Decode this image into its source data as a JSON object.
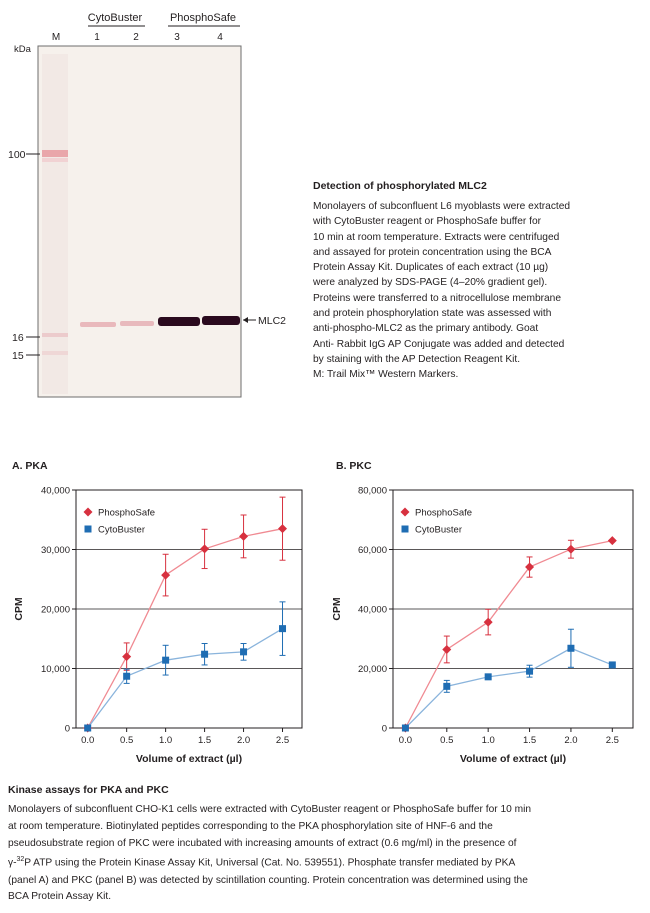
{
  "blot": {
    "groups": [
      {
        "label": "CytoBuster",
        "lanes": [
          "1",
          "2"
        ]
      },
      {
        "label": "PhosphoSafe",
        "lanes": [
          "3",
          "4"
        ]
      }
    ],
    "marker_lane_label": "M",
    "kda_label": "kDa",
    "markers": [
      "100",
      "16",
      "15"
    ],
    "band_label": "MLC2"
  },
  "blot_caption": {
    "title": "Detection of phosphorylated MLC2",
    "lines": [
      "Monolayers of subconfluent L6 myoblasts were extracted",
      "with CytoBuster reagent or PhosphoSafe buffer for",
      "10 min at room temperature. Extracts were centrifuged",
      "and assayed for protein concentration using the BCA",
      "Protein Assay Kit. Duplicates of each extract (10 µg)",
      "were analyzed by SDS-PAGE (4–20% gradient gel).",
      "Proteins were transferred to a nitrocellulose membrane",
      "and protein phosphorylation state was assessed with",
      "anti-phospho-MLC2 as the primary antibody. Goat",
      "Anti- Rabbit IgG AP Conjugate was added and detected",
      "by staining with the AP Detection Reagent Kit.",
      "M: Trail Mix™ Western Markers."
    ]
  },
  "kinase_caption": {
    "title": "Kinase assays for PKA and PKC",
    "line1": "Monolayers of subconfluent CHO-K1 cells were extracted with CytoBuster reagent or PhosphoSafe buffer for 10 min",
    "line2": "at room temperature. Biotinylated peptides corresponding to the PKA phosphorylation site of HNF-6 and the",
    "line3": "pseudosubstrate region of PKC were incubated with increasing amounts of extract (0.6 mg/ml) in the presence of",
    "line4_pre": "γ-",
    "line4_sup": "32",
    "line4_post": "P ATP using the Protein Kinase Assay Kit, Universal (Cat. No. 539551). Phosphate transfer mediated by PKA",
    "line5": "(panel A) and PKC (panel B) was detected by scintillation counting. Protein concentration was determined using the",
    "line6": "BCA Protein Assay Kit."
  },
  "colors": {
    "phosphosafe": "#d7313f",
    "cytobuster": "#1f6db3",
    "line_phosphosafe": "#f08a92",
    "line_cytobuster": "#8ab4dc",
    "band": "#2a0a1e",
    "marker_pink": "#e79aa0"
  },
  "chart_data": [
    {
      "type": "line",
      "title": "A. PKA",
      "xlabel": "Volume of extract (µl)",
      "ylabel": "CPM",
      "xlim": [
        -0.15,
        2.75
      ],
      "ylim": [
        0,
        40000
      ],
      "x_ticks": [
        "0.0",
        "0.5",
        "1.0",
        "1.5",
        "2.0",
        "2.5"
      ],
      "y_ticks": [
        "0",
        "10,000",
        "20,000",
        "30,000",
        "40,000"
      ],
      "grid": "horizontal",
      "legend": "top-left",
      "series": [
        {
          "name": "PhosphoSafe",
          "marker": "diamond",
          "x": [
            0,
            0.5,
            1.0,
            1.5,
            2.0,
            2.5
          ],
          "y": [
            0,
            12000,
            25700,
            30100,
            32200,
            33500
          ],
          "err": [
            0,
            2300,
            3500,
            3300,
            3600,
            5300
          ]
        },
        {
          "name": "CytoBuster",
          "marker": "square",
          "x": [
            0,
            0.5,
            1.0,
            1.5,
            2.0,
            2.5
          ],
          "y": [
            0,
            8700,
            11400,
            12400,
            12800,
            16700
          ],
          "err": [
            0,
            1200,
            2500,
            1800,
            1400,
            4500
          ]
        }
      ]
    },
    {
      "type": "line",
      "title": "B. PKC",
      "xlabel": "Volume of extract (µl)",
      "ylabel": "CPM",
      "xlim": [
        -0.15,
        2.75
      ],
      "ylim": [
        0,
        80000
      ],
      "x_ticks": [
        "0.0",
        "0.5",
        "1.0",
        "1.5",
        "2.0",
        "2.5"
      ],
      "y_ticks": [
        "0",
        "20,000",
        "40,000",
        "60,000",
        "80,000"
      ],
      "grid": "horizontal",
      "legend": "top-left",
      "series": [
        {
          "name": "PhosphoSafe",
          "marker": "diamond",
          "x": [
            0,
            0.5,
            1.0,
            1.5,
            2.0,
            2.5
          ],
          "y": [
            0,
            26400,
            35600,
            54100,
            60100,
            63000
          ],
          "err": [
            0,
            4500,
            4300,
            3400,
            3000,
            0
          ]
        },
        {
          "name": "CytoBuster",
          "marker": "square",
          "x": [
            0,
            0.5,
            1.0,
            1.5,
            2.0,
            2.5
          ],
          "y": [
            0,
            14000,
            17200,
            19100,
            26800,
            21200
          ],
          "err": [
            0,
            2000,
            0,
            2000,
            6400,
            0
          ]
        }
      ]
    }
  ]
}
